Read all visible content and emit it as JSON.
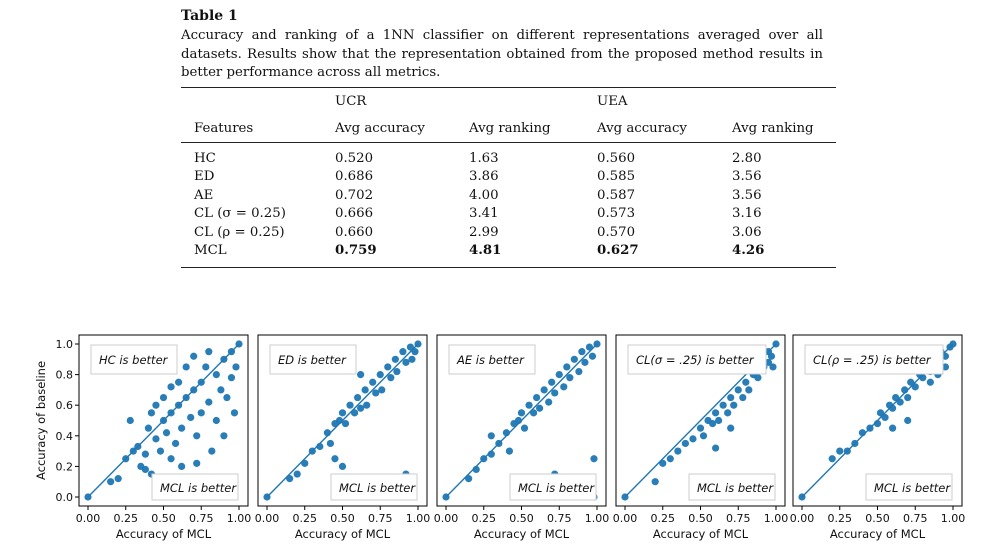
{
  "table": {
    "title": "Table 1",
    "caption": "Accuracy and ranking of a 1NN classifier on different representations averaged over all datasets. Results show that the representation obtained from the proposed method results in better performance across all metrics.",
    "group_headers": [
      "UCR",
      "UEA"
    ],
    "columns": [
      "Features",
      "Avg accuracy",
      "Avg ranking",
      "Avg accuracy",
      "Avg ranking"
    ],
    "rows": [
      {
        "feature": "HC",
        "ucr_acc": "0.520",
        "ucr_rank": "1.63",
        "uea_acc": "0.560",
        "uea_rank": "2.80",
        "bold": false
      },
      {
        "feature": "ED",
        "ucr_acc": "0.686",
        "ucr_rank": "3.86",
        "uea_acc": "0.585",
        "uea_rank": "3.56",
        "bold": false
      },
      {
        "feature": "AE",
        "ucr_acc": "0.702",
        "ucr_rank": "4.00",
        "uea_acc": "0.587",
        "uea_rank": "3.56",
        "bold": false
      },
      {
        "feature": "CL (σ = 0.25)",
        "ucr_acc": "0.666",
        "ucr_rank": "3.41",
        "uea_acc": "0.573",
        "uea_rank": "3.16",
        "bold": false
      },
      {
        "feature": "CL (ρ = 0.25)",
        "ucr_acc": "0.660",
        "ucr_rank": "2.99",
        "uea_acc": "0.570",
        "uea_rank": "3.06",
        "bold": false
      },
      {
        "feature": "MCL",
        "ucr_acc": "0.759",
        "ucr_rank": "4.81",
        "uea_acc": "0.627",
        "uea_rank": "4.26",
        "bold": true
      }
    ]
  },
  "chart_data": [
    {
      "type": "scatter",
      "top_label": "HC is better",
      "bottom_label": "MCL is better",
      "xlabel": "Accuracy of MCL",
      "ylabel": "Accuracy of baseline",
      "xlim": [
        0,
        1
      ],
      "ylim": [
        0,
        1
      ],
      "x_ticks": [
        "0.00",
        "0.25",
        "0.50",
        "0.75",
        "1.00"
      ],
      "y_ticks": [
        "0.0",
        "0.2",
        "0.4",
        "0.6",
        "0.8",
        "1.0"
      ],
      "diagonal": true,
      "color": "#1f77b4",
      "points": [
        [
          0.0,
          0.0
        ],
        [
          0.15,
          0.1
        ],
        [
          0.2,
          0.12
        ],
        [
          0.25,
          0.25
        ],
        [
          0.3,
          0.3
        ],
        [
          0.28,
          0.5
        ],
        [
          0.33,
          0.33
        ],
        [
          0.35,
          0.2
        ],
        [
          0.38,
          0.28
        ],
        [
          0.4,
          0.45
        ],
        [
          0.42,
          0.55
        ],
        [
          0.45,
          0.38
        ],
        [
          0.45,
          0.6
        ],
        [
          0.48,
          0.3
        ],
        [
          0.5,
          0.5
        ],
        [
          0.5,
          0.65
        ],
        [
          0.52,
          0.42
        ],
        [
          0.55,
          0.55
        ],
        [
          0.55,
          0.72
        ],
        [
          0.58,
          0.35
        ],
        [
          0.6,
          0.6
        ],
        [
          0.6,
          0.75
        ],
        [
          0.62,
          0.45
        ],
        [
          0.65,
          0.65
        ],
        [
          0.65,
          0.85
        ],
        [
          0.68,
          0.52
        ],
        [
          0.7,
          0.7
        ],
        [
          0.7,
          0.92
        ],
        [
          0.72,
          0.4
        ],
        [
          0.75,
          0.75
        ],
        [
          0.75,
          0.55
        ],
        [
          0.78,
          0.85
        ],
        [
          0.8,
          0.62
        ],
        [
          0.8,
          0.95
        ],
        [
          0.82,
          0.3
        ],
        [
          0.85,
          0.8
        ],
        [
          0.85,
          0.5
        ],
        [
          0.88,
          0.7
        ],
        [
          0.9,
          0.9
        ],
        [
          0.9,
          0.4
        ],
        [
          0.92,
          0.65
        ],
        [
          0.95,
          0.95
        ],
        [
          0.95,
          0.78
        ],
        [
          0.97,
          0.55
        ],
        [
          1.0,
          1.0
        ],
        [
          0.98,
          0.85
        ],
        [
          0.72,
          0.22
        ],
        [
          0.62,
          0.2
        ],
        [
          0.55,
          0.25
        ],
        [
          0.42,
          0.15
        ],
        [
          0.38,
          0.18
        ]
      ]
    },
    {
      "type": "scatter",
      "top_label": "ED is better",
      "bottom_label": "MCL is better",
      "xlabel": "Accuracy of MCL",
      "ylabel": "",
      "xlim": [
        0,
        1
      ],
      "ylim": [
        0,
        1
      ],
      "x_ticks": [
        "0.00",
        "0.25",
        "0.50",
        "0.75",
        "1.00"
      ],
      "y_ticks": [],
      "diagonal": true,
      "color": "#1f77b4",
      "points": [
        [
          0.0,
          0.0
        ],
        [
          0.15,
          0.12
        ],
        [
          0.2,
          0.15
        ],
        [
          0.25,
          0.22
        ],
        [
          0.3,
          0.3
        ],
        [
          0.35,
          0.33
        ],
        [
          0.4,
          0.42
        ],
        [
          0.42,
          0.35
        ],
        [
          0.45,
          0.48
        ],
        [
          0.48,
          0.5
        ],
        [
          0.5,
          0.55
        ],
        [
          0.52,
          0.48
        ],
        [
          0.55,
          0.6
        ],
        [
          0.58,
          0.55
        ],
        [
          0.6,
          0.65
        ],
        [
          0.62,
          0.58
        ],
        [
          0.65,
          0.7
        ],
        [
          0.66,
          0.6
        ],
        [
          0.7,
          0.75
        ],
        [
          0.72,
          0.68
        ],
        [
          0.75,
          0.8
        ],
        [
          0.76,
          0.7
        ],
        [
          0.8,
          0.85
        ],
        [
          0.82,
          0.78
        ],
        [
          0.85,
          0.9
        ],
        [
          0.86,
          0.82
        ],
        [
          0.9,
          0.95
        ],
        [
          0.92,
          0.88
        ],
        [
          0.95,
          0.98
        ],
        [
          0.96,
          0.9
        ],
        [
          1.0,
          1.0
        ],
        [
          0.98,
          0.95
        ],
        [
          0.88,
          0.12
        ],
        [
          0.92,
          0.15
        ],
        [
          0.62,
          0.8
        ],
        [
          0.5,
          0.2
        ],
        [
          0.45,
          0.25
        ]
      ]
    },
    {
      "type": "scatter",
      "top_label": "AE is better",
      "bottom_label": "MCL is better",
      "xlabel": "Accuracy of MCL",
      "ylabel": "",
      "xlim": [
        0,
        1
      ],
      "ylim": [
        0,
        1
      ],
      "x_ticks": [
        "0.00",
        "0.25",
        "0.50",
        "0.75",
        "1.00"
      ],
      "y_ticks": [],
      "diagonal": true,
      "color": "#1f77b4",
      "points": [
        [
          0.0,
          0.0
        ],
        [
          0.15,
          0.12
        ],
        [
          0.2,
          0.18
        ],
        [
          0.25,
          0.25
        ],
        [
          0.3,
          0.28
        ],
        [
          0.3,
          0.4
        ],
        [
          0.35,
          0.35
        ],
        [
          0.4,
          0.42
        ],
        [
          0.42,
          0.3
        ],
        [
          0.45,
          0.48
        ],
        [
          0.48,
          0.5
        ],
        [
          0.5,
          0.55
        ],
        [
          0.52,
          0.45
        ],
        [
          0.55,
          0.6
        ],
        [
          0.58,
          0.55
        ],
        [
          0.6,
          0.65
        ],
        [
          0.62,
          0.58
        ],
        [
          0.65,
          0.7
        ],
        [
          0.68,
          0.62
        ],
        [
          0.7,
          0.75
        ],
        [
          0.72,
          0.68
        ],
        [
          0.75,
          0.8
        ],
        [
          0.78,
          0.72
        ],
        [
          0.8,
          0.85
        ],
        [
          0.82,
          0.78
        ],
        [
          0.85,
          0.9
        ],
        [
          0.88,
          0.82
        ],
        [
          0.9,
          0.95
        ],
        [
          0.92,
          0.88
        ],
        [
          0.95,
          0.98
        ],
        [
          0.97,
          0.92
        ],
        [
          1.0,
          1.0
        ],
        [
          0.72,
          0.15
        ],
        [
          0.72,
          0.0
        ],
        [
          0.98,
          0.0
        ],
        [
          0.98,
          0.25
        ],
        [
          0.48,
          0.08
        ]
      ]
    },
    {
      "type": "scatter",
      "top_label": "CL(σ = .25) is better",
      "bottom_label": "MCL is better",
      "xlabel": "Accuracy of MCL",
      "ylabel": "",
      "xlim": [
        0,
        1
      ],
      "ylim": [
        0,
        1
      ],
      "x_ticks": [
        "0.00",
        "0.25",
        "0.50",
        "0.75",
        "1.00"
      ],
      "y_ticks": [],
      "diagonal": true,
      "color": "#1f77b4",
      "points": [
        [
          0.0,
          0.0
        ],
        [
          0.2,
          0.1
        ],
        [
          0.25,
          0.22
        ],
        [
          0.3,
          0.25
        ],
        [
          0.35,
          0.3
        ],
        [
          0.4,
          0.35
        ],
        [
          0.45,
          0.38
        ],
        [
          0.5,
          0.45
        ],
        [
          0.52,
          0.4
        ],
        [
          0.55,
          0.5
        ],
        [
          0.58,
          0.48
        ],
        [
          0.6,
          0.55
        ],
        [
          0.62,
          0.5
        ],
        [
          0.65,
          0.6
        ],
        [
          0.68,
          0.55
        ],
        [
          0.7,
          0.65
        ],
        [
          0.72,
          0.6
        ],
        [
          0.75,
          0.7
        ],
        [
          0.78,
          0.65
        ],
        [
          0.8,
          0.75
        ],
        [
          0.82,
          0.7
        ],
        [
          0.85,
          0.8
        ],
        [
          0.88,
          0.78
        ],
        [
          0.9,
          0.88
        ],
        [
          0.92,
          0.85
        ],
        [
          0.95,
          0.95
        ],
        [
          0.97,
          0.92
        ],
        [
          1.0,
          1.0
        ],
        [
          0.95,
          0.88
        ],
        [
          0.9,
          0.92
        ],
        [
          0.85,
          0.9
        ],
        [
          0.98,
          0.85
        ],
        [
          0.6,
          0.32
        ],
        [
          0.7,
          0.45
        ]
      ]
    },
    {
      "type": "scatter",
      "top_label": "CL(ρ = .25) is better",
      "bottom_label": "MCL is better",
      "xlabel": "Accuracy of MCL",
      "ylabel": "",
      "xlim": [
        0,
        1
      ],
      "ylim": [
        0,
        1
      ],
      "x_ticks": [
        "0.00",
        "0.25",
        "0.50",
        "0.75",
        "1.00"
      ],
      "y_ticks": [],
      "diagonal": true,
      "color": "#1f77b4",
      "points": [
        [
          0.0,
          0.0
        ],
        [
          0.2,
          0.25
        ],
        [
          0.25,
          0.3
        ],
        [
          0.3,
          0.3
        ],
        [
          0.35,
          0.35
        ],
        [
          0.4,
          0.42
        ],
        [
          0.45,
          0.45
        ],
        [
          0.5,
          0.48
        ],
        [
          0.52,
          0.55
        ],
        [
          0.55,
          0.52
        ],
        [
          0.58,
          0.6
        ],
        [
          0.6,
          0.58
        ],
        [
          0.62,
          0.65
        ],
        [
          0.65,
          0.62
        ],
        [
          0.68,
          0.7
        ],
        [
          0.7,
          0.65
        ],
        [
          0.72,
          0.75
        ],
        [
          0.75,
          0.72
        ],
        [
          0.78,
          0.8
        ],
        [
          0.8,
          0.78
        ],
        [
          0.82,
          0.85
        ],
        [
          0.85,
          0.82
        ],
        [
          0.88,
          0.9
        ],
        [
          0.9,
          0.88
        ],
        [
          0.92,
          0.95
        ],
        [
          0.95,
          0.92
        ],
        [
          0.98,
          0.98
        ],
        [
          1.0,
          1.0
        ],
        [
          0.9,
          0.8
        ],
        [
          0.95,
          0.85
        ],
        [
          0.85,
          0.75
        ],
        [
          0.6,
          0.45
        ],
        [
          0.7,
          0.5
        ]
      ]
    }
  ]
}
